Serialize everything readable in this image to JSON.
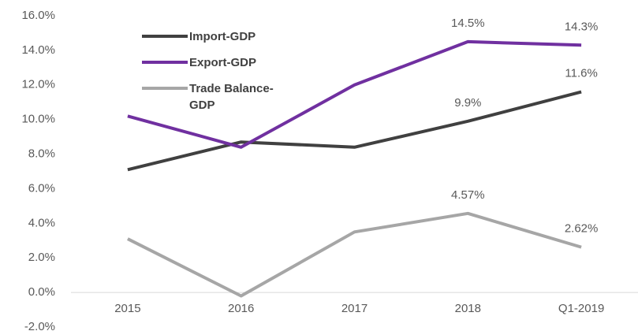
{
  "chart_data": {
    "type": "line",
    "categories": [
      "2015",
      "2016",
      "2017",
      "2018",
      "Q1-2019"
    ],
    "series": [
      {
        "name": "Import-GDP",
        "color": "#404040",
        "values": [
          7.1,
          8.7,
          8.4,
          9.9,
          11.6
        ],
        "value_labels": [
          null,
          null,
          null,
          "9.9%",
          "11.6%"
        ]
      },
      {
        "name": "Export-GDP",
        "color": "#7030a0",
        "values": [
          10.2,
          8.4,
          12.0,
          14.5,
          14.3
        ],
        "value_labels": [
          null,
          null,
          null,
          "14.5%",
          "14.3%"
        ]
      },
      {
        "name": "Trade Balance-GDP",
        "color": "#a6a6a6",
        "values": [
          3.1,
          -0.2,
          3.5,
          4.57,
          2.62
        ],
        "value_labels": [
          null,
          null,
          null,
          "4.57%",
          "2.62%"
        ]
      }
    ],
    "ylim": [
      -2,
      16
    ],
    "yticks": [
      {
        "value": -2,
        "label": "-2.0%"
      },
      {
        "value": 0,
        "label": "0.0%"
      },
      {
        "value": 2,
        "label": "2.0%"
      },
      {
        "value": 4,
        "label": "4.0%"
      },
      {
        "value": 6,
        "label": "6.0%"
      },
      {
        "value": 8,
        "label": "8.0%"
      },
      {
        "value": 10,
        "label": "10.0%"
      },
      {
        "value": 12,
        "label": "12.0%"
      },
      {
        "value": 14,
        "label": "14.0%"
      },
      {
        "value": 16,
        "label": "16.0%"
      }
    ],
    "grid": false,
    "legend": "upper left"
  }
}
